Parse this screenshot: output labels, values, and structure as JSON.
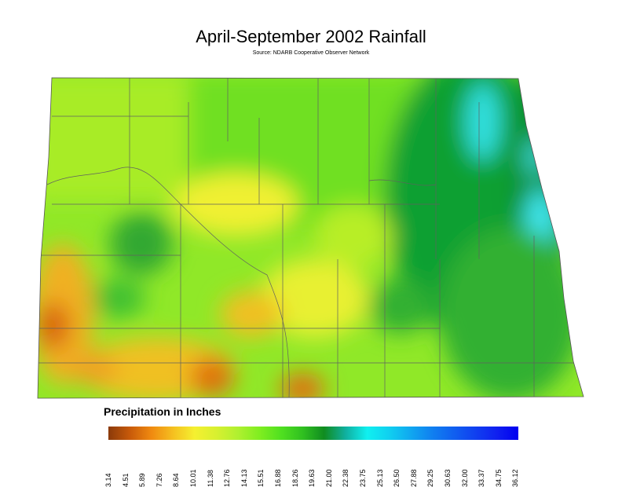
{
  "title": "April-September 2002 Rainfall",
  "source": "Source: NDARB Cooperative Observer Network",
  "legend": {
    "title": "Precipitation in Inches",
    "ticks": [
      "3.14",
      "4.51",
      "5.89",
      "7.26",
      "8.64",
      "10.01",
      "11.38",
      "12.76",
      "14.13",
      "15.51",
      "16.88",
      "18.26",
      "19.63",
      "21.00",
      "22.38",
      "23.75",
      "25.13",
      "26.50",
      "27.88",
      "29.25",
      "30.63",
      "32.00",
      "33.37",
      "34.75",
      "36.12"
    ],
    "colors": [
      "#8b3a0a",
      "#c85a0a",
      "#f08a10",
      "#f5c020",
      "#f5f030",
      "#d8f030",
      "#b0f030",
      "#80ee20",
      "#50e020",
      "#30c020",
      "#108c20",
      "#10b0a0",
      "#10f0f0",
      "#10d0f0",
      "#10a8f0",
      "#1080f0",
      "#1060f0",
      "#1040f0",
      "#1020f0",
      "#0000f0"
    ]
  }
}
